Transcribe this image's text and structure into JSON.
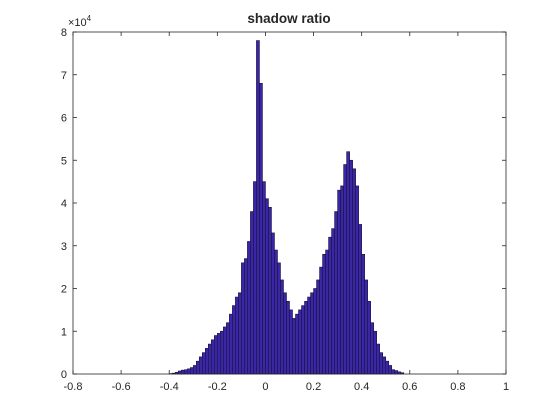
{
  "chart_data": {
    "type": "bar",
    "title": "shadow ratio",
    "xlabel": "",
    "ylabel": "",
    "xlim": [
      -0.8,
      1.0
    ],
    "ylim": [
      0,
      80000
    ],
    "y_exponent_label": "×10",
    "y_exponent_value": "4",
    "x_ticks": [
      -0.8,
      -0.6,
      -0.4,
      -0.2,
      0,
      0.2,
      0.4,
      0.6,
      0.8,
      1
    ],
    "x_tick_labels": [
      "-0.8",
      "-0.6",
      "-0.4",
      "-0.2",
      "0",
      "0.2",
      "0.4",
      "0.6",
      "0.8",
      "1"
    ],
    "y_ticks": [
      0,
      10000,
      20000,
      30000,
      40000,
      50000,
      60000,
      70000,
      80000
    ],
    "y_tick_labels": [
      "0",
      "1",
      "2",
      "3",
      "4",
      "5",
      "6",
      "7",
      "8"
    ],
    "grid": false,
    "legend": "none",
    "bin_width": 0.0125,
    "bin_edges_start": -0.4,
    "values": [
      100,
      200,
      400,
      700,
      900,
      1000,
      1200,
      1500,
      2000,
      3000,
      4000,
      5000,
      6000,
      7000,
      8000,
      9000,
      9500,
      10000,
      11000,
      12000,
      14000,
      16000,
      18000,
      19000,
      26000,
      27000,
      31000,
      38000,
      45000,
      78000,
      68000,
      45000,
      41000,
      39000,
      33000,
      29000,
      26000,
      22000,
      19000,
      17000,
      15000,
      13000,
      14000,
      15000,
      16000,
      17000,
      18000,
      19000,
      20000,
      22000,
      25000,
      28000,
      29000,
      32000,
      34000,
      38000,
      43000,
      44000,
      49000,
      52000,
      50000,
      48000,
      44000,
      35000,
      28000,
      22000,
      17000,
      12000,
      10000,
      7000,
      5000,
      4000,
      3000,
      2000,
      1000,
      800,
      500,
      300
    ],
    "bar_color": "#3a27a6"
  }
}
